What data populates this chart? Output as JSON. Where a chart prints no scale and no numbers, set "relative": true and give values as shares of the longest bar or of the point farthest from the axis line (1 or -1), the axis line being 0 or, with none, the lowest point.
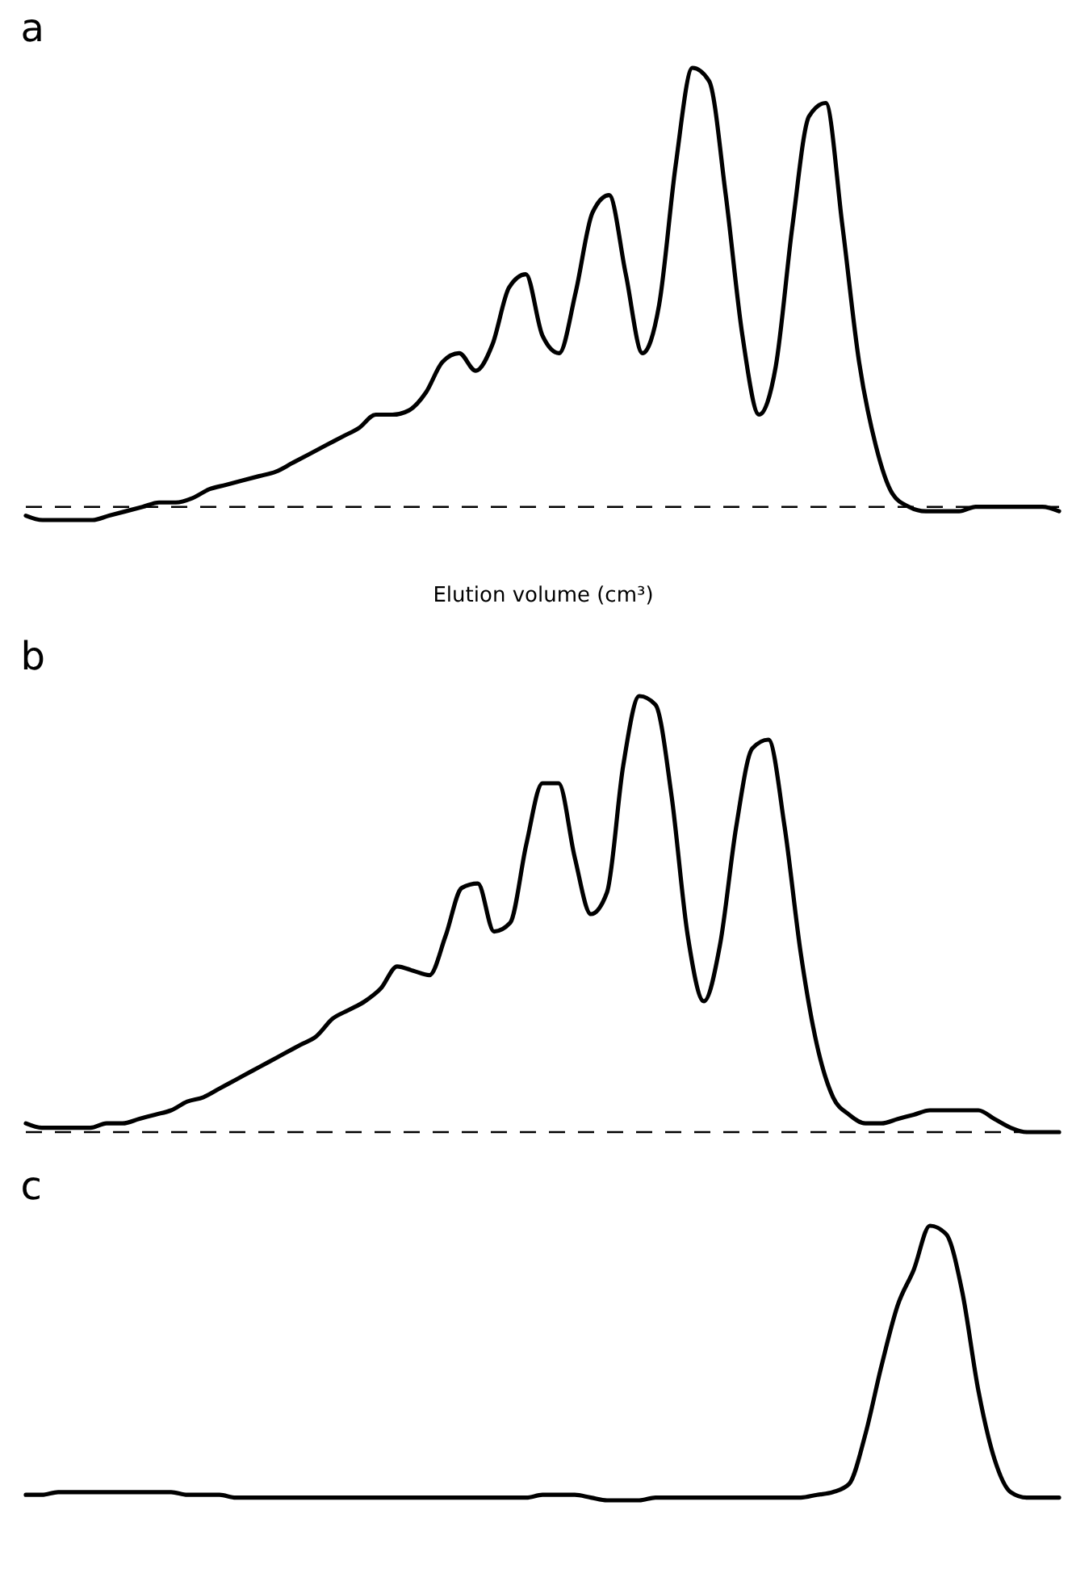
{
  "chart_data": [
    {
      "type": "line",
      "title": "a",
      "xlabel": "Elution volume (cm³)",
      "relative": true,
      "tick_labels": false,
      "categories": [
        null,
        null,
        null,
        null,
        null,
        null,
        null,
        null,
        null,
        null,
        null,
        null,
        null,
        null,
        null,
        null,
        null,
        null,
        null,
        null,
        null,
        null,
        null,
        null,
        null,
        null,
        null,
        null,
        null,
        null,
        null,
        null,
        null,
        null,
        null,
        null,
        null,
        null,
        null,
        null,
        null,
        null,
        null,
        null,
        null,
        null,
        null,
        null,
        null,
        null,
        null,
        null,
        null,
        null,
        null,
        null,
        null,
        null,
        null,
        null,
        null,
        null,
        null
      ],
      "series": [
        {
          "color": "#000000",
          "values": [
            -0.02,
            -0.03,
            -0.03,
            -0.03,
            -0.03,
            -0.02,
            -0.01,
            0,
            0.01,
            0.01,
            0.02,
            0.04,
            0.05,
            0.06,
            0.07,
            0.08,
            0.1,
            0.12,
            0.14,
            0.16,
            0.18,
            0.21,
            0.21,
            0.22,
            0.26,
            0.33,
            0.35,
            0.31,
            0.37,
            0.5,
            0.53,
            0.39,
            0.35,
            0.49,
            0.67,
            0.71,
            0.53,
            0.35,
            0.46,
            0.78,
            1,
            0.97,
            0.71,
            0.39,
            0.21,
            0.32,
            0.64,
            0.89,
            0.92,
            0.64,
            0.33,
            0.14,
            0.03,
            0,
            -0.01,
            -0.01,
            -0.01,
            0,
            0,
            0,
            0,
            0,
            -0.01
          ]
        }
      ],
      "ref_lines": [
        {
          "axis": "y",
          "value": 0,
          "line_style": "dashed"
        }
      ]
    },
    {
      "type": "line",
      "title": "b",
      "relative": true,
      "tick_labels": false,
      "categories": [
        null,
        null,
        null,
        null,
        null,
        null,
        null,
        null,
        null,
        null,
        null,
        null,
        null,
        null,
        null,
        null,
        null,
        null,
        null,
        null,
        null,
        null,
        null,
        null,
        null,
        null,
        null,
        null,
        null,
        null,
        null,
        null,
        null,
        null,
        null,
        null,
        null,
        null,
        null,
        null,
        null,
        null,
        null,
        null,
        null,
        null,
        null,
        null,
        null,
        null,
        null,
        null,
        null,
        null,
        null,
        null,
        null,
        null,
        null,
        null,
        null,
        null,
        null,
        null,
        null
      ],
      "series": [
        {
          "color": "#000000",
          "values": [
            0.02,
            0.01,
            0.01,
            0.01,
            0.01,
            0.02,
            0.02,
            0.03,
            0.04,
            0.05,
            0.07,
            0.08,
            0.1,
            0.12,
            0.14,
            0.16,
            0.18,
            0.2,
            0.22,
            0.26,
            0.28,
            0.3,
            0.33,
            0.38,
            0.37,
            0.36,
            0.45,
            0.56,
            0.57,
            0.46,
            0.48,
            0.66,
            0.8,
            0.8,
            0.63,
            0.5,
            0.55,
            0.84,
            1,
            0.98,
            0.77,
            0.45,
            0.3,
            0.43,
            0.7,
            0.88,
            0.9,
            0.7,
            0.41,
            0.2,
            0.08,
            0.04,
            0.02,
            0.02,
            0.03,
            0.04,
            0.05,
            0.05,
            0.05,
            0.05,
            0.03,
            0.01,
            0,
            0,
            0
          ]
        }
      ],
      "ref_lines": [
        {
          "axis": "y",
          "value": 0,
          "line_style": "dashed"
        }
      ]
    },
    {
      "type": "line",
      "title": "c",
      "relative": true,
      "tick_labels": false,
      "categories": [
        null,
        null,
        null,
        null,
        null,
        null,
        null,
        null,
        null,
        null,
        null,
        null,
        null,
        null,
        null,
        null,
        null,
        null,
        null,
        null,
        null,
        null,
        null,
        null,
        null,
        null,
        null,
        null,
        null,
        null,
        null,
        null,
        null,
        null,
        null,
        null,
        null,
        null,
        null,
        null,
        null,
        null,
        null,
        null,
        null,
        null,
        null,
        null,
        null,
        null,
        null,
        null,
        null,
        null,
        null,
        null,
        null,
        null,
        null,
        null,
        null,
        null,
        null,
        null,
        null
      ],
      "series": [
        {
          "color": "#000000",
          "values": [
            0.02,
            0.02,
            0.03,
            0.03,
            0.03,
            0.03,
            0.03,
            0.03,
            0.03,
            0.03,
            0.02,
            0.02,
            0.02,
            0.01,
            0.01,
            0.01,
            0.01,
            0.01,
            0.01,
            0.01,
            0.01,
            0.01,
            0.01,
            0.01,
            0.01,
            0.01,
            0.01,
            0.01,
            0.01,
            0.01,
            0.01,
            0.01,
            0.02,
            0.02,
            0.02,
            0.01,
            0,
            0,
            0,
            0.01,
            0.01,
            0.01,
            0.01,
            0.01,
            0.01,
            0.01,
            0.01,
            0.01,
            0.01,
            0.02,
            0.03,
            0.06,
            0.24,
            0.49,
            0.71,
            0.84,
            1,
            0.97,
            0.76,
            0.4,
            0.15,
            0.03,
            0.01,
            0.01,
            0.01
          ]
        }
      ]
    }
  ]
}
